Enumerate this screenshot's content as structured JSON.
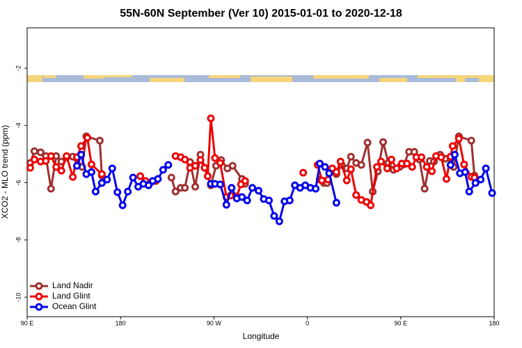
{
  "chart_data": {
    "type": "line",
    "title": "55N-60N September (Ver 10)   2015-01-01 to 2020-12-18",
    "x_label": "Longitude",
    "y_label": "XCO2 - MLO trend (ppm)",
    "xlim": [
      90,
      540
    ],
    "ylim": [
      -10.68,
      -0.59
    ],
    "xticks": [
      {
        "value": 90,
        "label": "90 E"
      },
      180,
      {
        "value": 270,
        "label": "90 W"
      },
      {
        "value": 360,
        "label": "0"
      },
      {
        "value": 450,
        "label": "90 E"
      },
      {
        "value": 540,
        "label": "180"
      }
    ],
    "yticks": [
      -10,
      -8,
      -6,
      -4,
      -2
    ],
    "legend": "bottom-left",
    "series": [
      {
        "name": "Land Nadir",
        "color": "#9e2f2f",
        "x": [
          93,
          97,
          103,
          108,
          113,
          118,
          123,
          128,
          134,
          138,
          143,
          147,
          160,
          162,
          null,
          229,
          233,
          238,
          242,
          247,
          252,
          257,
          267,
          272,
          277,
          283,
          288,
          297,
          300,
          null,
          372,
          376,
          379,
          383,
          388,
          393,
          398,
          402,
          407,
          412,
          418,
          423,
          428,
          433,
          438,
          443,
          449,
          453,
          458,
          463,
          468,
          473,
          478,
          482,
          488,
          493,
          498,
          501,
          506,
          518,
          521
        ],
        "values": [
          -5.31,
          -4.9,
          -4.94,
          -5.07,
          -6.21,
          -5.07,
          -5.26,
          -5.11,
          -5.09,
          -5.16,
          -5.45,
          -4.38,
          -4.53,
          -5.75,
          null,
          -5.82,
          -6.31,
          -6.18,
          -6.18,
          -5.28,
          -6.14,
          -5.02,
          -6.09,
          -5.41,
          -5.21,
          -5.5,
          -5.41,
          -5.87,
          -6.04,
          null,
          -5.89,
          -6.01,
          -6.01,
          -5.58,
          -5.7,
          -5.38,
          -5.5,
          -5.09,
          -5.31,
          -5.38,
          -4.6,
          -6.31,
          -5.6,
          -4.58,
          -5.31,
          -5.55,
          -5.45,
          -5.36,
          -4.92,
          -4.92,
          -5.19,
          -6.21,
          -5.24,
          -5.26,
          -5.02,
          -5.16,
          -5.14,
          -5.45,
          -4.38,
          -4.53,
          -5.75
        ]
      },
      {
        "name": "Land Glint",
        "color": "#ee0000",
        "x": [
          93,
          97,
          103,
          108,
          113,
          118,
          123,
          128,
          134,
          138,
          142,
          148,
          152,
          162,
          null,
          199,
          204,
          209,
          214,
          null,
          233,
          238,
          242,
          247,
          252,
          257,
          261,
          264,
          267,
          271,
          276,
          282,
          286,
          292,
          296,
          300,
          null,
          356,
          null,
          370,
          374,
          380,
          384,
          388,
          392,
          398,
          402,
          407,
          412,
          417,
          421,
          427,
          431,
          437,
          441,
          446,
          451,
          456,
          461,
          465,
          470,
          475,
          480,
          484,
          489,
          494,
          498,
          500,
          506,
          511,
          518,
          521
        ],
        "values": [
          -5.48,
          -5.19,
          -5.26,
          -5.24,
          -5.07,
          -5.45,
          -5.58,
          -5.07,
          -5.8,
          -5.11,
          -4.72,
          -4.43,
          -5.36,
          -5.7,
          null,
          -5.77,
          -5.94,
          -5.99,
          -5.94,
          null,
          -5.07,
          -5.11,
          -5.19,
          -5.48,
          -5.41,
          -5.21,
          -5.48,
          -5.77,
          -3.75,
          -5.14,
          -5.31,
          -6.5,
          -6.45,
          -6.48,
          -6.06,
          -5.94,
          null,
          -5.65,
          null,
          -5.38,
          -5.92,
          -5.89,
          -5.5,
          -5.63,
          -5.26,
          -5.92,
          -5.53,
          -6.43,
          -6.6,
          -6.67,
          -6.79,
          -5.45,
          -5.26,
          -5.5,
          -5.19,
          -5.5,
          -5.33,
          -5.33,
          -5.45,
          -5.11,
          -5.11,
          -5.45,
          -5.6,
          -5.07,
          -5.11,
          -5.87,
          -5.09,
          -4.72,
          -4.46,
          -5.36,
          -5.8,
          -5.82
        ]
      },
      {
        "name": "Ocean Glint",
        "color": "#0000ee",
        "x": [
          138,
          142,
          147,
          152,
          156,
          162,
          167,
          172,
          177,
          182,
          187,
          192,
          197,
          202,
          207,
          211,
          216,
          221,
          226,
          null,
          267,
          271,
          276,
          282,
          287,
          292,
          297,
          302,
          307,
          313,
          318,
          323,
          328,
          333,
          338,
          343,
          348,
          353,
          358,
          363,
          368,
          372,
          377,
          381,
          388,
          null,
          498,
          502,
          507,
          512,
          516,
          522,
          527,
          532,
          538
        ],
        "values": [
          -5.41,
          -5.02,
          -5.7,
          -5.63,
          -6.31,
          -6.01,
          -5.89,
          -5.5,
          -6.33,
          -6.79,
          -6.31,
          -5.82,
          -6.14,
          -6.04,
          -6.09,
          -5.94,
          -5.87,
          -5.55,
          -5.38,
          null,
          -6.04,
          -6.04,
          -6.06,
          -6.77,
          -6.18,
          -6.55,
          -6.5,
          -6.62,
          -6.18,
          -6.28,
          -6.57,
          -6.62,
          -7.16,
          -7.35,
          -6.65,
          -6.62,
          -6.09,
          -6.18,
          -6.09,
          -6.18,
          -6.21,
          -5.33,
          -5.45,
          -5.67,
          -6.7,
          null,
          -5.38,
          -5.02,
          -5.67,
          -5.63,
          -6.31,
          -6.01,
          -5.89,
          -5.5,
          -6.36
        ]
      }
    ]
  }
}
